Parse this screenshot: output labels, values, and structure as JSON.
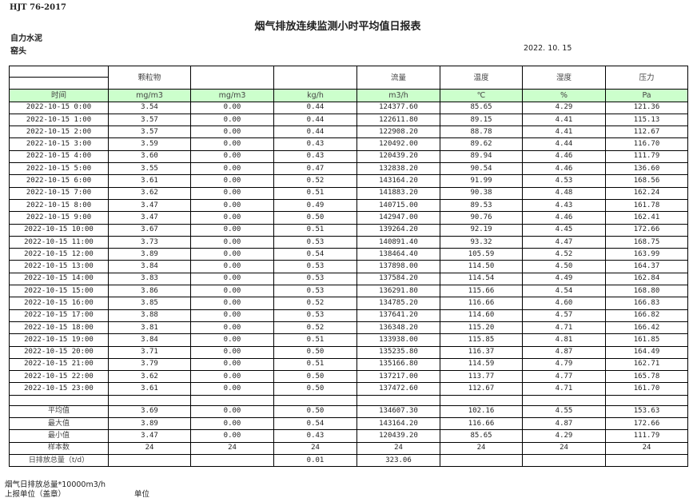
{
  "header": {
    "standard": "HJT  76-2017",
    "title": "烟气排放连续监测小时平均值日报表",
    "company": "自力水泥",
    "unit": "窑头",
    "date": "2022. 10. 15"
  },
  "columns": {
    "names": [
      "",
      "颗粒物",
      "",
      "",
      "流量",
      "温度",
      "湿度",
      "压力"
    ],
    "units": [
      "时间",
      "mg/m3",
      "mg/m3",
      "kg/h",
      "m3/h",
      "℃",
      "%",
      "Pa"
    ]
  },
  "rows": [
    [
      "2022-10-15 0:00",
      "3.54",
      "0.00",
      "0.44",
      "124377.60",
      "85.65",
      "4.29",
      "121.36"
    ],
    [
      "2022-10-15 1:00",
      "3.57",
      "0.00",
      "0.44",
      "122611.80",
      "89.15",
      "4.41",
      "115.13"
    ],
    [
      "2022-10-15 2:00",
      "3.57",
      "0.00",
      "0.44",
      "122908.20",
      "88.78",
      "4.41",
      "112.67"
    ],
    [
      "2022-10-15 3:00",
      "3.59",
      "0.00",
      "0.43",
      "120492.00",
      "89.62",
      "4.44",
      "116.70"
    ],
    [
      "2022-10-15 4:00",
      "3.60",
      "0.00",
      "0.43",
      "120439.20",
      "89.94",
      "4.46",
      "111.79"
    ],
    [
      "2022-10-15 5:00",
      "3.55",
      "0.00",
      "0.47",
      "132838.20",
      "90.54",
      "4.46",
      "136.60"
    ],
    [
      "2022-10-15 6:00",
      "3.61",
      "0.00",
      "0.52",
      "143164.20",
      "91.99",
      "4.53",
      "168.56"
    ],
    [
      "2022-10-15 7:00",
      "3.62",
      "0.00",
      "0.51",
      "141883.20",
      "90.38",
      "4.48",
      "162.24"
    ],
    [
      "2022-10-15 8:00",
      "3.47",
      "0.00",
      "0.49",
      "140715.00",
      "89.53",
      "4.43",
      "161.78"
    ],
    [
      "2022-10-15 9:00",
      "3.47",
      "0.00",
      "0.50",
      "142947.00",
      "90.76",
      "4.46",
      "162.41"
    ],
    [
      "2022-10-15 10:00",
      "3.67",
      "0.00",
      "0.51",
      "139264.20",
      "92.19",
      "4.45",
      "172.66"
    ],
    [
      "2022-10-15 11:00",
      "3.73",
      "0.00",
      "0.53",
      "140891.40",
      "93.32",
      "4.47",
      "168.75"
    ],
    [
      "2022-10-15 12:00",
      "3.89",
      "0.00",
      "0.54",
      "138464.40",
      "105.59",
      "4.52",
      "163.99"
    ],
    [
      "2022-10-15 13:00",
      "3.84",
      "0.00",
      "0.53",
      "137898.00",
      "114.50",
      "4.50",
      "164.37"
    ],
    [
      "2022-10-15 14:00",
      "3.83",
      "0.00",
      "0.53",
      "137584.20",
      "114.54",
      "4.49",
      "162.84"
    ],
    [
      "2022-10-15 15:00",
      "3.86",
      "0.00",
      "0.53",
      "136291.80",
      "115.66",
      "4.54",
      "168.80"
    ],
    [
      "2022-10-15 16:00",
      "3.85",
      "0.00",
      "0.52",
      "134785.20",
      "116.66",
      "4.60",
      "166.83"
    ],
    [
      "2022-10-15 17:00",
      "3.88",
      "0.00",
      "0.53",
      "137641.20",
      "114.60",
      "4.57",
      "166.82"
    ],
    [
      "2022-10-15 18:00",
      "3.81",
      "0.00",
      "0.52",
      "136348.20",
      "115.20",
      "4.71",
      "166.42"
    ],
    [
      "2022-10-15 19:00",
      "3.84",
      "0.00",
      "0.51",
      "133938.00",
      "115.85",
      "4.81",
      "161.85"
    ],
    [
      "2022-10-15 20:00",
      "3.71",
      "0.00",
      "0.50",
      "135235.80",
      "116.37",
      "4.87",
      "164.49"
    ],
    [
      "2022-10-15 21:00",
      "3.79",
      "0.00",
      "0.51",
      "135166.80",
      "114.59",
      "4.79",
      "162.71"
    ],
    [
      "2022-10-15 22:00",
      "3.62",
      "0.00",
      "0.50",
      "137217.00",
      "113.77",
      "4.77",
      "165.78"
    ],
    [
      "2022-10-15 23:00",
      "3.61",
      "0.00",
      "0.50",
      "137472.60",
      "112.67",
      "4.71",
      "161.70"
    ]
  ],
  "stats": [
    [
      "平均值",
      "3.69",
      "0.00",
      "0.50",
      "134607.30",
      "102.16",
      "4.55",
      "153.63"
    ],
    [
      "最大值",
      "3.89",
      "0.00",
      "0.54",
      "143164.20",
      "116.66",
      "4.87",
      "172.66"
    ],
    [
      "最小值",
      "3.47",
      "0.00",
      "0.43",
      "120439.20",
      "85.65",
      "4.29",
      "111.79"
    ],
    [
      "样本数",
      "24",
      "24",
      "24",
      "24",
      "24",
      "24",
      "24"
    ],
    [
      "日排放总量（t/d）",
      "",
      "",
      "0.01",
      "323.06",
      "",
      "",
      ""
    ]
  ],
  "footer": {
    "note": "烟气日排放总量*10000m3/h",
    "reporter": "上报单位（盖章）",
    "unit_label": "单位"
  }
}
